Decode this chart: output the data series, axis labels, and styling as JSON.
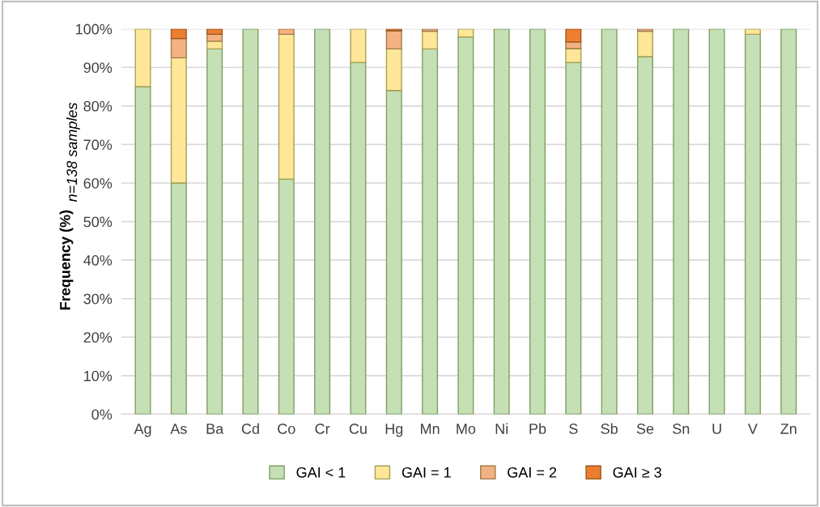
{
  "chart_data": {
    "type": "bar",
    "stacked": true,
    "ylabel": "Frequency (%)",
    "annotations": [
      "n=138 samples"
    ],
    "categories": [
      "Ag",
      "As",
      "Ba",
      "Cd",
      "Co",
      "Cr",
      "Cu",
      "Hg",
      "Mn",
      "Mo",
      "Ni",
      "Pb",
      "S",
      "Sb",
      "Se",
      "Sn",
      "U",
      "V",
      "Zn"
    ],
    "series": [
      {
        "name": "GAI < 1",
        "color": "#c5e0b4",
        "values": [
          85,
          60,
          94.8,
          100,
          61,
          100,
          91.3,
          84,
          94.8,
          97.9,
          100,
          100,
          91.3,
          100,
          92.8,
          100,
          100,
          98.6,
          100
        ]
      },
      {
        "name": "GAI = 1",
        "color": "#ffe699",
        "values": [
          15,
          32.5,
          2.0,
          0,
          37.6,
          0,
          8.7,
          10.8,
          4.6,
          2.1,
          0,
          0,
          3.6,
          0,
          6.6,
          0,
          0,
          1.4,
          0
        ]
      },
      {
        "name": "GAI = 2",
        "color": "#f4b183",
        "values": [
          0,
          5,
          1.8,
          0,
          1.4,
          0,
          0,
          4.7,
          0.6,
          0,
          0,
          0,
          1.7,
          0,
          0.6,
          0,
          0,
          0,
          0
        ]
      },
      {
        "name": "GAI ≥ 3",
        "color": "#ed7d31",
        "values": [
          0,
          2.5,
          1.4,
          0,
          0,
          0,
          0,
          0.5,
          0,
          0,
          0,
          0,
          3.4,
          0,
          0,
          0,
          0,
          0,
          0
        ]
      }
    ],
    "ylim": [
      0,
      100
    ],
    "yticks": [
      {
        "value": 0,
        "label": "0%"
      },
      {
        "value": 10,
        "label": "10%"
      },
      {
        "value": 20,
        "label": "20%"
      },
      {
        "value": 30,
        "label": "30%"
      },
      {
        "value": 40,
        "label": "40%"
      },
      {
        "value": 50,
        "label": "50%"
      },
      {
        "value": 60,
        "label": "60%"
      },
      {
        "value": 70,
        "label": "70%"
      },
      {
        "value": 80,
        "label": "80%"
      },
      {
        "value": 90,
        "label": "90%"
      },
      {
        "value": 100,
        "label": "100%"
      }
    ],
    "grid": "y",
    "legend": "bottom"
  }
}
